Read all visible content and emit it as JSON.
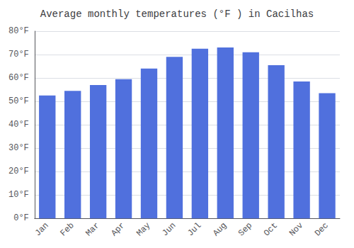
{
  "chart_data": {
    "type": "bar",
    "title": "Average monthly temperatures (°F ) in Cacilhas",
    "categories": [
      "Jan",
      "Feb",
      "Mar",
      "Apr",
      "May",
      "Jun",
      "Jul",
      "Aug",
      "Sep",
      "Oct",
      "Nov",
      "Dec"
    ],
    "values": [
      52.5,
      54.5,
      57.0,
      59.5,
      64.0,
      69.0,
      72.5,
      73.0,
      71.0,
      65.5,
      58.5,
      53.5
    ],
    "ylim": [
      0,
      80
    ],
    "yticks": [
      {
        "value": 0,
        "label": "0°F"
      },
      {
        "value": 10,
        "label": "10°F"
      },
      {
        "value": 20,
        "label": "20°F"
      },
      {
        "value": 30,
        "label": "30°F"
      },
      {
        "value": 40,
        "label": "40°F"
      },
      {
        "value": 50,
        "label": "50°F"
      },
      {
        "value": 60,
        "label": "60°F"
      },
      {
        "value": 70,
        "label": "70°F"
      },
      {
        "value": 80,
        "label": "80°F"
      }
    ],
    "grid": true
  }
}
